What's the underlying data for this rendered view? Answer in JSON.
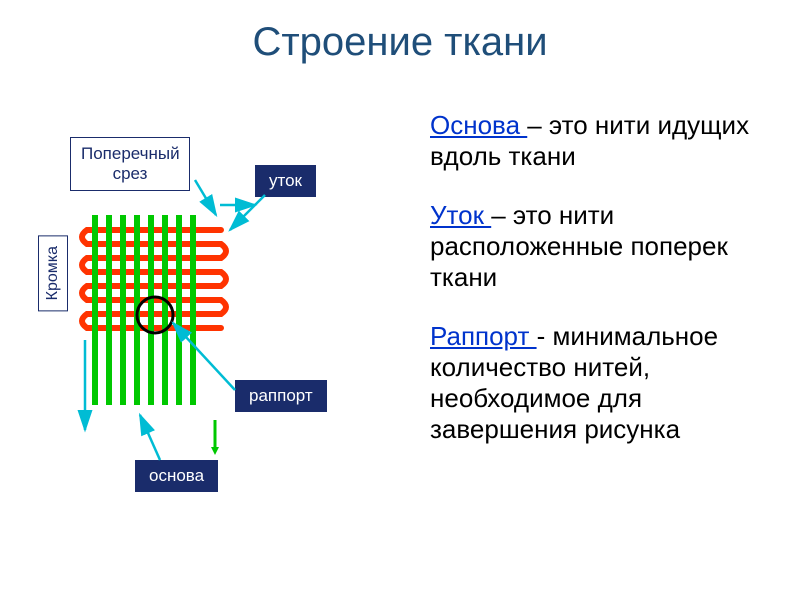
{
  "title": "Строение ткани",
  "labels": {
    "cross_section": "Поперечный срез",
    "edge": "Кромка",
    "weft": "уток",
    "rapport": "раппорт",
    "warp": "основа"
  },
  "definitions": [
    {
      "term": "Основа ",
      "text": "– это нити идущих вдоль ткани"
    },
    {
      "term": "Уток ",
      "text": "– это нити расположенные поперек ткани"
    },
    {
      "term": "Раппорт ",
      "text": "- минимальное количество нитей, необходимое для завершения рисунка"
    }
  ],
  "colors": {
    "title": "#1f4e79",
    "term": "#0033cc",
    "text": "#000000",
    "box_navy": "#1a2c6b",
    "warp_green": "#00c800",
    "weft_orange": "#ff3300",
    "arrow_cyan": "#00bcd4",
    "circle_black": "#000000",
    "background": "#ffffff"
  },
  "diagram": {
    "warp_threads": 8,
    "weft_threads": 8,
    "warp_spacing": 14,
    "weft_spacing": 14,
    "thread_width": 6,
    "circle_radius": 18
  },
  "fonts": {
    "title_size": 40,
    "def_size": 26,
    "label_size": 17
  }
}
